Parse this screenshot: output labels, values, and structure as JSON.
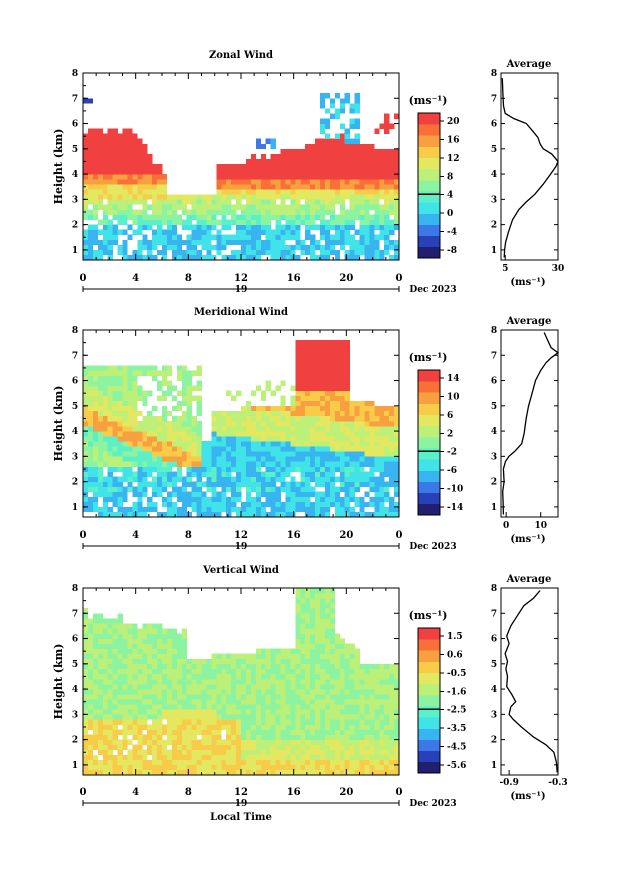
{
  "colors": {
    "zonal_scale": [
      "#20206e",
      "#2840b8",
      "#3c78e8",
      "#38b4f0",
      "#40e4e8",
      "#5cf0c8",
      "#8cf4a0",
      "#bcf078",
      "#e4e860",
      "#f8cc48",
      "#f8a040",
      "#f87038",
      "#f04040"
    ],
    "meridional_scale": [
      "#20206e",
      "#2840b8",
      "#3c78e8",
      "#38b4f0",
      "#40e4e8",
      "#5cf0c8",
      "#8cf4a0",
      "#bcf078",
      "#e4e860",
      "#f8cc48",
      "#f8a040",
      "#f87038",
      "#f04040"
    ],
    "vertical_scale": [
      "#20206e",
      "#2840b8",
      "#3c78e8",
      "#38b4f0",
      "#40e4e8",
      "#5cf0c8",
      "#8cf4a0",
      "#bcf078",
      "#e4e860",
      "#f8cc48",
      "#f8a040",
      "#f87038",
      "#f04040"
    ]
  },
  "chart_data": [
    {
      "type": "heatmap",
      "title": "Zonal Wind",
      "ylabel": "Height (km)",
      "xlabel": "",
      "x_ticks": [
        "0",
        "4",
        "8",
        "12",
        "16",
        "20",
        "0"
      ],
      "date_day": "19",
      "date_label": "Dec 2023",
      "ylim": [
        0.6,
        8
      ],
      "y_ticks": [
        "1",
        "2",
        "3",
        "4",
        "5",
        "6",
        "7",
        "8"
      ],
      "unit_label": "(ms⁻¹)",
      "colorbar_ticks": [
        "20",
        "16",
        "12",
        "8",
        "4",
        "0",
        "-4",
        "-8"
      ],
      "profile": {
        "title": "Average",
        "xlabel": "(ms⁻¹)",
        "x_ticks": [
          "5",
          "30"
        ],
        "xlim": [
          3,
          30
        ],
        "points": [
          [
            4.5,
            0.7
          ],
          [
            4.7,
            1.0
          ],
          [
            5.2,
            1.3
          ],
          [
            6.5,
            1.7
          ],
          [
            8.5,
            2.2
          ],
          [
            11.5,
            2.6
          ],
          [
            15,
            2.9
          ],
          [
            19,
            3.2
          ],
          [
            23,
            3.6
          ],
          [
            26.5,
            4.0
          ],
          [
            29,
            4.3
          ],
          [
            30,
            4.5
          ],
          [
            27,
            4.8
          ],
          [
            23,
            5.0
          ],
          [
            21.5,
            5.2
          ],
          [
            20.5,
            5.45
          ],
          [
            18,
            5.7
          ],
          [
            15,
            6.0
          ],
          [
            9,
            6.2
          ],
          [
            5,
            6.4
          ],
          [
            4.2,
            6.7
          ],
          [
            4,
            7.0
          ],
          [
            3.8,
            7.4
          ],
          [
            3.6,
            7.8
          ]
        ]
      }
    },
    {
      "type": "heatmap",
      "title": "Meridional Wind",
      "ylabel": "Height (km)",
      "xlabel": "",
      "x_ticks": [
        "0",
        "4",
        "8",
        "12",
        "16",
        "20",
        "0"
      ],
      "date_day": "19",
      "date_label": "Dec 2023",
      "ylim": [
        0.6,
        8
      ],
      "y_ticks": [
        "1",
        "2",
        "3",
        "4",
        "5",
        "6",
        "7",
        "8"
      ],
      "unit_label": "(ms⁻¹)",
      "colorbar_ticks": [
        "14",
        "10",
        "6",
        "2",
        "-2",
        "-6",
        "-10",
        "-14"
      ],
      "profile": {
        "title": "Average",
        "xlabel": "(ms⁻¹)",
        "x_ticks": [
          "0",
          "10"
        ],
        "xlim": [
          -1.5,
          15
        ],
        "points": [
          [
            -0.8,
            0.7
          ],
          [
            -0.9,
            1.2
          ],
          [
            -1,
            1.6
          ],
          [
            -0.6,
            2.0
          ],
          [
            -0.8,
            2.5
          ],
          [
            -0.2,
            2.8
          ],
          [
            0.8,
            3.0
          ],
          [
            2.5,
            3.2
          ],
          [
            4.5,
            3.5
          ],
          [
            5.2,
            3.9
          ],
          [
            5.8,
            4.5
          ],
          [
            6.5,
            5.0
          ],
          [
            7.5,
            5.5
          ],
          [
            8.5,
            6.0
          ],
          [
            10,
            6.4
          ],
          [
            11.5,
            6.7
          ],
          [
            13,
            6.9
          ],
          [
            15,
            7.1
          ],
          [
            13,
            7.3
          ],
          [
            12,
            7.6
          ],
          [
            11,
            7.9
          ]
        ]
      }
    },
    {
      "type": "heatmap",
      "title": "Vertical Wind",
      "ylabel": "Height (km)",
      "xlabel": "Local Time",
      "x_ticks": [
        "0",
        "4",
        "8",
        "12",
        "16",
        "20",
        "0"
      ],
      "date_day": "19",
      "date_label": "Dec 2023",
      "ylim": [
        0.6,
        8
      ],
      "y_ticks": [
        "1",
        "2",
        "3",
        "4",
        "5",
        "6",
        "7",
        "8"
      ],
      "unit_label": "(ms⁻¹)",
      "colorbar_ticks": [
        "1.5",
        "0.6",
        "-0.5",
        "-1.6",
        "-2.5",
        "-3.5",
        "-4.5",
        "-5.6"
      ],
      "profile": {
        "title": "Average",
        "xlabel": "(ms⁻¹)",
        "x_ticks": [
          "-0.9",
          "-0.3"
        ],
        "xlim": [
          -1.0,
          -0.3
        ],
        "points": [
          [
            -0.31,
            0.7
          ],
          [
            -0.32,
            1.1
          ],
          [
            -0.35,
            1.5
          ],
          [
            -0.45,
            1.8
          ],
          [
            -0.6,
            2.1
          ],
          [
            -0.75,
            2.5
          ],
          [
            -0.85,
            2.8
          ],
          [
            -0.9,
            3.0
          ],
          [
            -0.88,
            3.3
          ],
          [
            -0.82,
            3.5
          ],
          [
            -0.87,
            3.8
          ],
          [
            -0.93,
            4.1
          ],
          [
            -0.92,
            4.5
          ],
          [
            -0.94,
            4.8
          ],
          [
            -0.92,
            5.1
          ],
          [
            -0.95,
            5.4
          ],
          [
            -0.9,
            5.8
          ],
          [
            -0.93,
            6.1
          ],
          [
            -0.88,
            6.5
          ],
          [
            -0.8,
            6.9
          ],
          [
            -0.72,
            7.3
          ],
          [
            -0.6,
            7.6
          ],
          [
            -0.52,
            7.9
          ]
        ]
      }
    }
  ]
}
